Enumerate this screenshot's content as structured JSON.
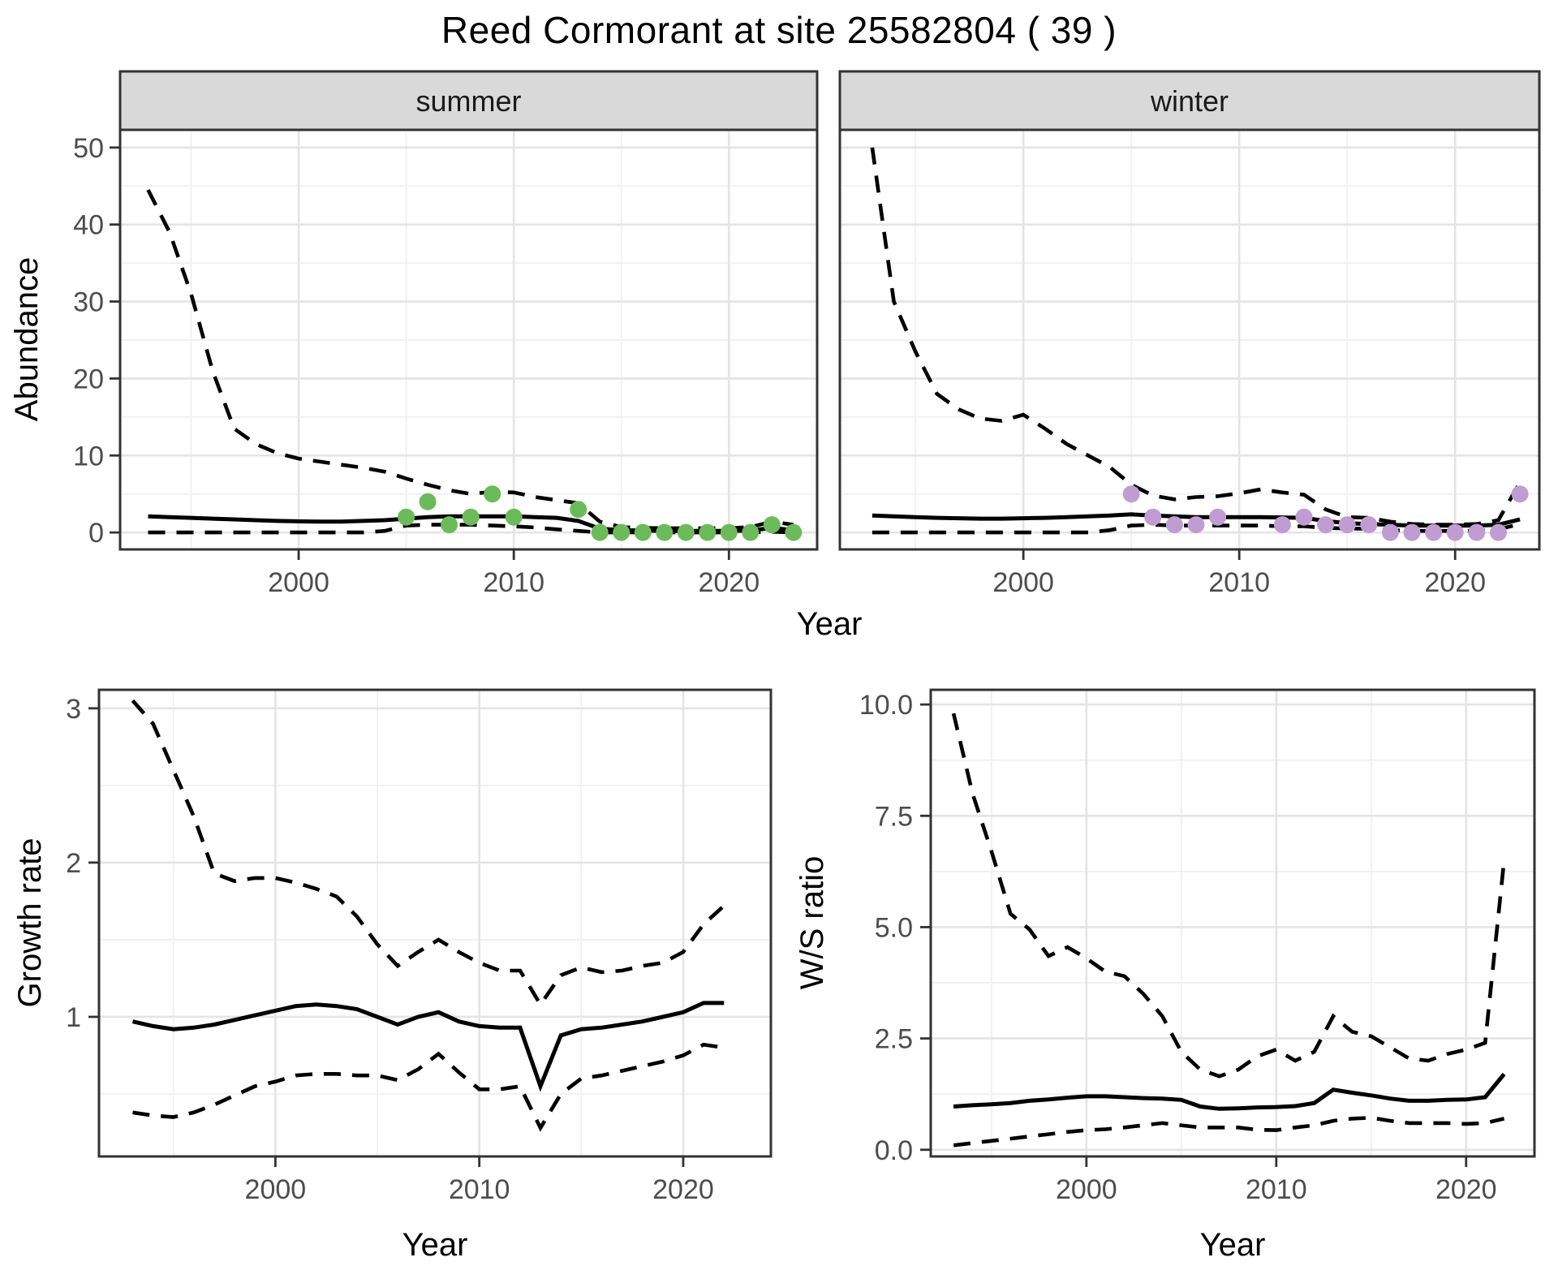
{
  "title": "Reed Cormorant at site 25582804 ( 39 )",
  "colors": {
    "summer_points": "#6cbb5a",
    "winter_points": "#c19cd2",
    "line": "#000000",
    "panel_border": "#333333",
    "grid_major": "#e4e4e4",
    "grid_minor": "#f0f0f0",
    "strip_fill": "#d9d9d9",
    "tick_text": "#4d4d4d"
  },
  "chart_data": [
    {
      "type": "line",
      "facet": "summer",
      "xlabel": "Year",
      "ylabel": "Abundance",
      "xlim": [
        1991.7,
        2024.1
      ],
      "ylim": [
        -2.2,
        52.3
      ],
      "xticks": [
        2000,
        2010,
        2020
      ],
      "xticklabels": [
        "2000",
        "2010",
        "2020"
      ],
      "xticks_minor": [
        1995,
        2005,
        2015
      ],
      "yticks": [
        0,
        10,
        20,
        30,
        40,
        50
      ],
      "yticklabels": [
        "0",
        "10",
        "20",
        "30",
        "40",
        "50"
      ],
      "yticks_minor": [
        5,
        15,
        25,
        35,
        45
      ],
      "x": [
        1993,
        1994,
        1995,
        1996,
        1997,
        1998,
        1999,
        2000,
        2001,
        2002,
        2003,
        2004,
        2005,
        2006,
        2007,
        2008,
        2009,
        2010,
        2011,
        2012,
        2013,
        2014,
        2015,
        2016,
        2017,
        2018,
        2019,
        2020,
        2021,
        2022,
        2023
      ],
      "series": [
        {
          "name": "upper-ci",
          "style": "dashed",
          "y": [
            44.5,
            39,
            31,
            21,
            13.5,
            11.5,
            10.3,
            9.6,
            9.2,
            8.8,
            8.4,
            7.9,
            7.0,
            6.2,
            5.5,
            5.0,
            5.3,
            5.2,
            4.6,
            4.2,
            3.8,
            1.4,
            0.7,
            0.6,
            0.55,
            0.55,
            0.55,
            0.55,
            0.7,
            1.4,
            1.0
          ]
        },
        {
          "name": "median",
          "style": "solid",
          "y": [
            2.1,
            2.0,
            1.9,
            1.8,
            1.7,
            1.6,
            1.5,
            1.45,
            1.4,
            1.4,
            1.5,
            1.6,
            1.8,
            2.0,
            2.1,
            2.1,
            2.1,
            2.1,
            2.0,
            1.9,
            1.5,
            0.5,
            0.3,
            0.25,
            0.2,
            0.2,
            0.2,
            0.2,
            0.25,
            0.6,
            0.3
          ]
        },
        {
          "name": "lower-ci",
          "style": "dashed",
          "y": [
            0,
            0,
            0,
            0,
            0,
            0,
            0,
            0,
            0,
            0,
            0,
            0.2,
            0.9,
            1.0,
            1.0,
            1.0,
            0.9,
            0.8,
            0.65,
            0.4,
            0.2,
            0,
            0,
            0,
            0,
            0,
            0,
            0,
            0,
            0.1,
            0
          ]
        }
      ],
      "points": {
        "color": "#6cbb5a",
        "x": [
          2005,
          2006,
          2007,
          2008,
          2009,
          2010,
          2013,
          2014,
          2015,
          2016,
          2017,
          2018,
          2019,
          2020,
          2021,
          2022,
          2023
        ],
        "y": [
          2,
          4,
          1,
          2,
          5,
          2,
          3,
          0,
          0,
          0,
          0,
          0,
          0,
          0,
          0,
          1,
          0
        ]
      }
    },
    {
      "type": "line",
      "facet": "winter",
      "xlabel": "Year",
      "ylabel": "Abundance",
      "xlim": [
        1991.5,
        2023.9
      ],
      "ylim": [
        -2.2,
        52.3
      ],
      "xticks": [
        2000,
        2010,
        2020
      ],
      "xticklabels": [
        "2000",
        "2010",
        "2020"
      ],
      "xticks_minor": [
        1995,
        2005,
        2015
      ],
      "yticks": [
        0,
        10,
        20,
        30,
        40,
        50
      ],
      "yticklabels": [
        "0",
        "10",
        "20",
        "30",
        "40",
        "50"
      ],
      "yticks_minor": [
        5,
        15,
        25,
        35,
        45
      ],
      "x": [
        1993,
        1994,
        1995,
        1996,
        1997,
        1998,
        1999,
        2000,
        2001,
        2002,
        2003,
        2004,
        2005,
        2006,
        2007,
        2008,
        2009,
        2010,
        2011,
        2012,
        2013,
        2014,
        2015,
        2016,
        2017,
        2018,
        2019,
        2020,
        2021,
        2022,
        2023
      ],
      "series": [
        {
          "name": "upper-ci",
          "style": "dashed",
          "y": [
            50,
            30,
            23.5,
            18,
            16,
            14.8,
            14.5,
            15.3,
            13.5,
            11.5,
            10,
            8.5,
            6.2,
            4.8,
            4.3,
            4.6,
            4.7,
            5.1,
            5.6,
            5.2,
            4.9,
            3.0,
            2.0,
            1.9,
            1.4,
            1.1,
            1.0,
            1.0,
            1.1,
            1.6,
            6.5
          ]
        },
        {
          "name": "median",
          "style": "solid",
          "y": [
            2.2,
            2.1,
            2.0,
            1.9,
            1.85,
            1.8,
            1.8,
            1.85,
            1.9,
            2.0,
            2.1,
            2.2,
            2.35,
            2.2,
            2.1,
            2.0,
            2.0,
            2.0,
            2.0,
            1.95,
            1.9,
            1.5,
            1.2,
            1.1,
            1.0,
            0.9,
            0.9,
            0.9,
            0.9,
            1.0,
            1.7
          ]
        },
        {
          "name": "lower-ci",
          "style": "dashed",
          "y": [
            0,
            0,
            0,
            0,
            0,
            0,
            0,
            0,
            0,
            0,
            0,
            0.3,
            0.9,
            1.0,
            0.9,
            0.9,
            0.9,
            0.9,
            0.9,
            0.8,
            0.8,
            0.6,
            0.5,
            0.5,
            0.3,
            0.2,
            0.2,
            0.2,
            0.2,
            0.4,
            1.1
          ]
        }
      ],
      "points": {
        "color": "#c19cd2",
        "x": [
          2005,
          2006,
          2007,
          2008,
          2009,
          2012,
          2013,
          2014,
          2015,
          2016,
          2017,
          2018,
          2019,
          2020,
          2021,
          2022,
          2023
        ],
        "y": [
          5,
          2,
          1,
          1,
          2,
          1,
          2,
          1,
          1,
          1,
          0,
          0,
          0,
          0,
          0,
          0,
          5
        ]
      }
    },
    {
      "type": "line",
      "facet": null,
      "xlabel": "Year",
      "ylabel": "Growth rate",
      "xlim": [
        1991.35,
        2024.3
      ],
      "ylim": [
        0.095,
        3.12
      ],
      "xticks": [
        2000,
        2010,
        2020
      ],
      "xticklabels": [
        "2000",
        "2010",
        "2020"
      ],
      "xticks_minor": [
        1995,
        2005,
        2015
      ],
      "yticks": [
        1,
        2,
        3
      ],
      "yticklabels": [
        "1",
        "2",
        "3"
      ],
      "yticks_minor": [
        0.5,
        1.5,
        2.5
      ],
      "x": [
        1993,
        1994,
        1995,
        1996,
        1997,
        1998,
        1999,
        2000,
        2001,
        2002,
        2003,
        2004,
        2005,
        2006,
        2007,
        2008,
        2009,
        2010,
        2011,
        2012,
        2013,
        2014,
        2015,
        2016,
        2017,
        2018,
        2019,
        2020,
        2021,
        2022
      ],
      "series": [
        {
          "name": "upper-ci",
          "style": "dashed",
          "y": [
            3.05,
            2.9,
            2.6,
            2.3,
            1.93,
            1.88,
            1.9,
            1.9,
            1.87,
            1.83,
            1.78,
            1.65,
            1.47,
            1.33,
            1.42,
            1.5,
            1.42,
            1.35,
            1.3,
            1.3,
            1.08,
            1.27,
            1.32,
            1.29,
            1.3,
            1.33,
            1.35,
            1.42,
            1.6,
            1.72
          ]
        },
        {
          "name": "median",
          "style": "solid",
          "y": [
            0.97,
            0.94,
            0.92,
            0.93,
            0.95,
            0.98,
            1.01,
            1.04,
            1.07,
            1.08,
            1.07,
            1.05,
            1.0,
            0.95,
            1.0,
            1.03,
            0.97,
            0.94,
            0.93,
            0.93,
            0.55,
            0.88,
            0.92,
            0.93,
            0.95,
            0.97,
            1.0,
            1.03,
            1.09,
            1.09
          ]
        },
        {
          "name": "lower-ci",
          "style": "dashed",
          "y": [
            0.38,
            0.36,
            0.35,
            0.38,
            0.43,
            0.49,
            0.55,
            0.58,
            0.62,
            0.63,
            0.63,
            0.62,
            0.62,
            0.59,
            0.66,
            0.76,
            0.64,
            0.53,
            0.53,
            0.55,
            0.28,
            0.5,
            0.6,
            0.62,
            0.65,
            0.68,
            0.71,
            0.75,
            0.82,
            0.8
          ]
        }
      ],
      "points": null
    },
    {
      "type": "line",
      "facet": null,
      "xlabel": "Year",
      "ylabel": "W/S ratio",
      "xlim": [
        1991.8,
        2023.6
      ],
      "ylim": [
        -0.15,
        10.33
      ],
      "xticks": [
        2000,
        2010,
        2020
      ],
      "xticklabels": [
        "2000",
        "2010",
        "2020"
      ],
      "xticks_minor": [
        1995,
        2005,
        2015
      ],
      "yticks": [
        0,
        2.5,
        5,
        7.5,
        10
      ],
      "yticklabels": [
        "0.0",
        "2.5",
        "5.0",
        "7.5",
        "10.0"
      ],
      "yticks_minor": [
        1.25,
        3.75,
        6.25,
        8.75
      ],
      "x": [
        1993,
        1994,
        1995,
        1996,
        1997,
        1998,
        1999,
        2000,
        2001,
        2002,
        2003,
        2004,
        2005,
        2006,
        2007,
        2008,
        2009,
        2010,
        2011,
        2012,
        2013,
        2014,
        2015,
        2016,
        2017,
        2018,
        2019,
        2020,
        2021,
        2022
      ],
      "series": [
        {
          "name": "upper-ci",
          "style": "dashed",
          "y": [
            9.8,
            8.0,
            6.7,
            5.3,
            4.95,
            4.35,
            4.55,
            4.3,
            4.0,
            3.9,
            3.5,
            3.0,
            2.2,
            1.8,
            1.65,
            1.8,
            2.1,
            2.25,
            2.0,
            2.2,
            3.0,
            2.65,
            2.55,
            2.3,
            2.05,
            2.0,
            2.15,
            2.25,
            2.4,
            6.5
          ]
        },
        {
          "name": "median",
          "style": "solid",
          "y": [
            0.97,
            1.0,
            1.02,
            1.05,
            1.1,
            1.13,
            1.17,
            1.2,
            1.2,
            1.18,
            1.16,
            1.15,
            1.12,
            0.97,
            0.92,
            0.93,
            0.95,
            0.96,
            0.98,
            1.05,
            1.35,
            1.28,
            1.22,
            1.15,
            1.1,
            1.1,
            1.12,
            1.13,
            1.18,
            1.7
          ]
        },
        {
          "name": "lower-ci",
          "style": "dashed",
          "y": [
            0.1,
            0.15,
            0.2,
            0.25,
            0.3,
            0.35,
            0.4,
            0.44,
            0.46,
            0.5,
            0.55,
            0.6,
            0.55,
            0.5,
            0.5,
            0.5,
            0.45,
            0.44,
            0.5,
            0.55,
            0.65,
            0.7,
            0.72,
            0.65,
            0.6,
            0.6,
            0.6,
            0.58,
            0.6,
            0.7
          ]
        }
      ],
      "points": null
    }
  ]
}
